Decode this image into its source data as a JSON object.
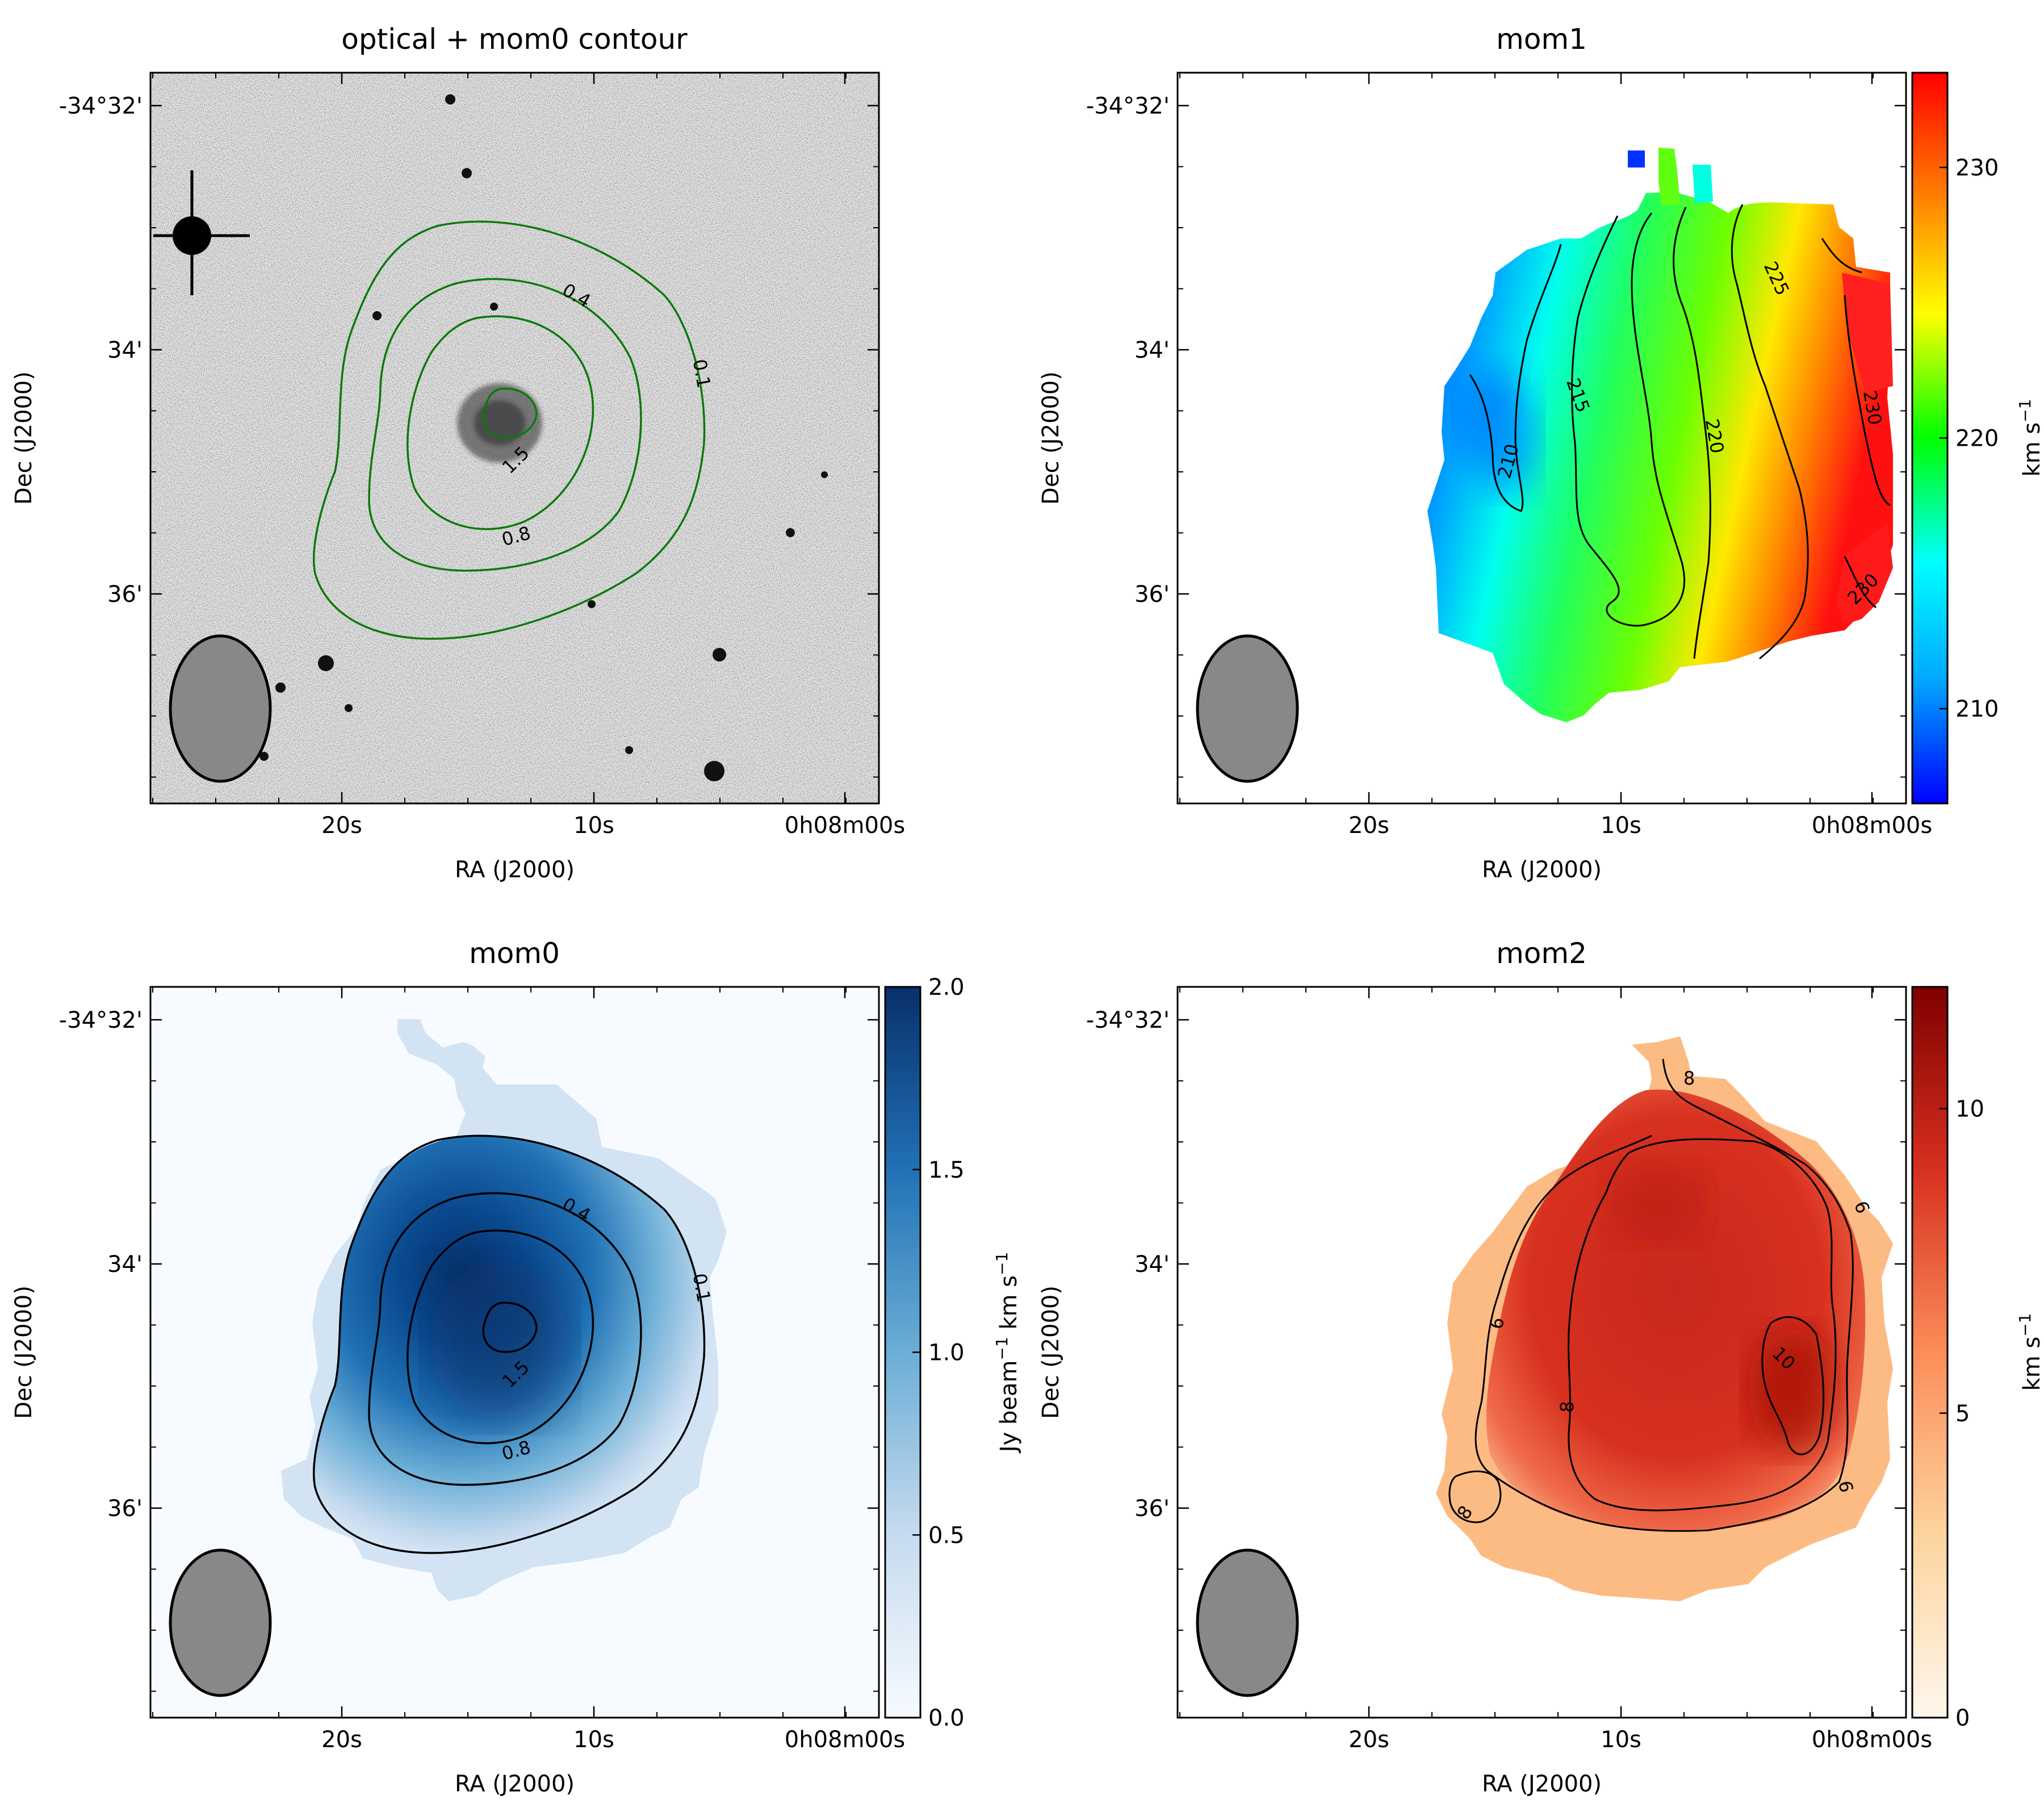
{
  "figure": {
    "panels": [
      {
        "id": "optical",
        "title": "optical + mom0 contour"
      },
      {
        "id": "mom1",
        "title": "mom1"
      },
      {
        "id": "mom0",
        "title": "mom0"
      },
      {
        "id": "mom2",
        "title": "mom2"
      }
    ],
    "axes": {
      "xlabel": "RA (J2000)",
      "ylabel": "Dec (J2000)",
      "xticks": [
        "20s",
        "10s",
        "0h08m00s"
      ],
      "yticks": [
        "-34°32'",
        "34'",
        "36'"
      ]
    },
    "colorbars": {
      "mom1": {
        "label": "km s",
        "label_sup": "−1",
        "ticks": [
          "230",
          "220",
          "210"
        ],
        "range": [
          206.5,
          233.5
        ],
        "cmap": "hsv"
      },
      "mom0": {
        "label": "Jy beam",
        "label_sup1": "−1",
        "label_mid": " km s",
        "label_sup2": "−1",
        "ticks": [
          "2.0",
          "1.5",
          "1.0",
          "0.5",
          "0.0"
        ],
        "range": [
          0,
          2.0
        ],
        "cmap": "Blues"
      },
      "mom2": {
        "label": "km s",
        "label_sup": "−1",
        "ticks": [
          "10",
          "5",
          "0"
        ],
        "range": [
          0,
          12
        ],
        "cmap": "OrRd"
      }
    },
    "colors": {
      "contour_optical": "#0a7a0a",
      "contour": "#000000",
      "beam": "#888888"
    }
  },
  "chart_data": [
    {
      "type": "heatmap",
      "title": "optical + mom0 contour",
      "xlabel": "RA (J2000)",
      "ylabel": "Dec (J2000)",
      "x_ticks": [
        "20s",
        "10s",
        "0h08m00s"
      ],
      "y_ticks": [
        "-34°32'",
        "34'",
        "36'"
      ],
      "background": "optical greyscale image",
      "contour_levels": [
        "0.1",
        "0.4",
        "0.8",
        "1.5"
      ]
    },
    {
      "type": "heatmap",
      "title": "mom1",
      "xlabel": "RA (J2000)",
      "ylabel": "Dec (J2000)",
      "x_ticks": [
        "20s",
        "10s",
        "0h08m00s"
      ],
      "y_ticks": [
        "-34°32'",
        "34'",
        "36'"
      ],
      "colorbar_label": "km s^-1",
      "colorbar_ticks": [
        210,
        220,
        230
      ],
      "colorbar_range": [
        206.5,
        233.5
      ],
      "contour_levels": [
        "210",
        "215",
        "220",
        "225",
        "230",
        "230"
      ]
    },
    {
      "type": "heatmap",
      "title": "mom0",
      "xlabel": "RA (J2000)",
      "ylabel": "Dec (J2000)",
      "x_ticks": [
        "20s",
        "10s",
        "0h08m00s"
      ],
      "y_ticks": [
        "-34°32'",
        "34'",
        "36'"
      ],
      "colorbar_label": "Jy beam^-1 km s^-1",
      "colorbar_ticks": [
        0.0,
        0.5,
        1.0,
        1.5,
        2.0
      ],
      "colorbar_range": [
        0,
        2.0
      ],
      "contour_levels": [
        "0.1",
        "0.4",
        "0.8",
        "1.5"
      ]
    },
    {
      "type": "heatmap",
      "title": "mom2",
      "xlabel": "RA (J2000)",
      "ylabel": "Dec (J2000)",
      "x_ticks": [
        "20s",
        "10s",
        "0h08m00s"
      ],
      "y_ticks": [
        "-34°32'",
        "34'",
        "36'"
      ],
      "colorbar_label": "km s^-1",
      "colorbar_ticks": [
        0,
        5,
        10
      ],
      "colorbar_range": [
        0,
        12
      ],
      "contour_levels": [
        "8",
        "6",
        "6",
        "10",
        "8",
        "6",
        "8"
      ]
    }
  ]
}
